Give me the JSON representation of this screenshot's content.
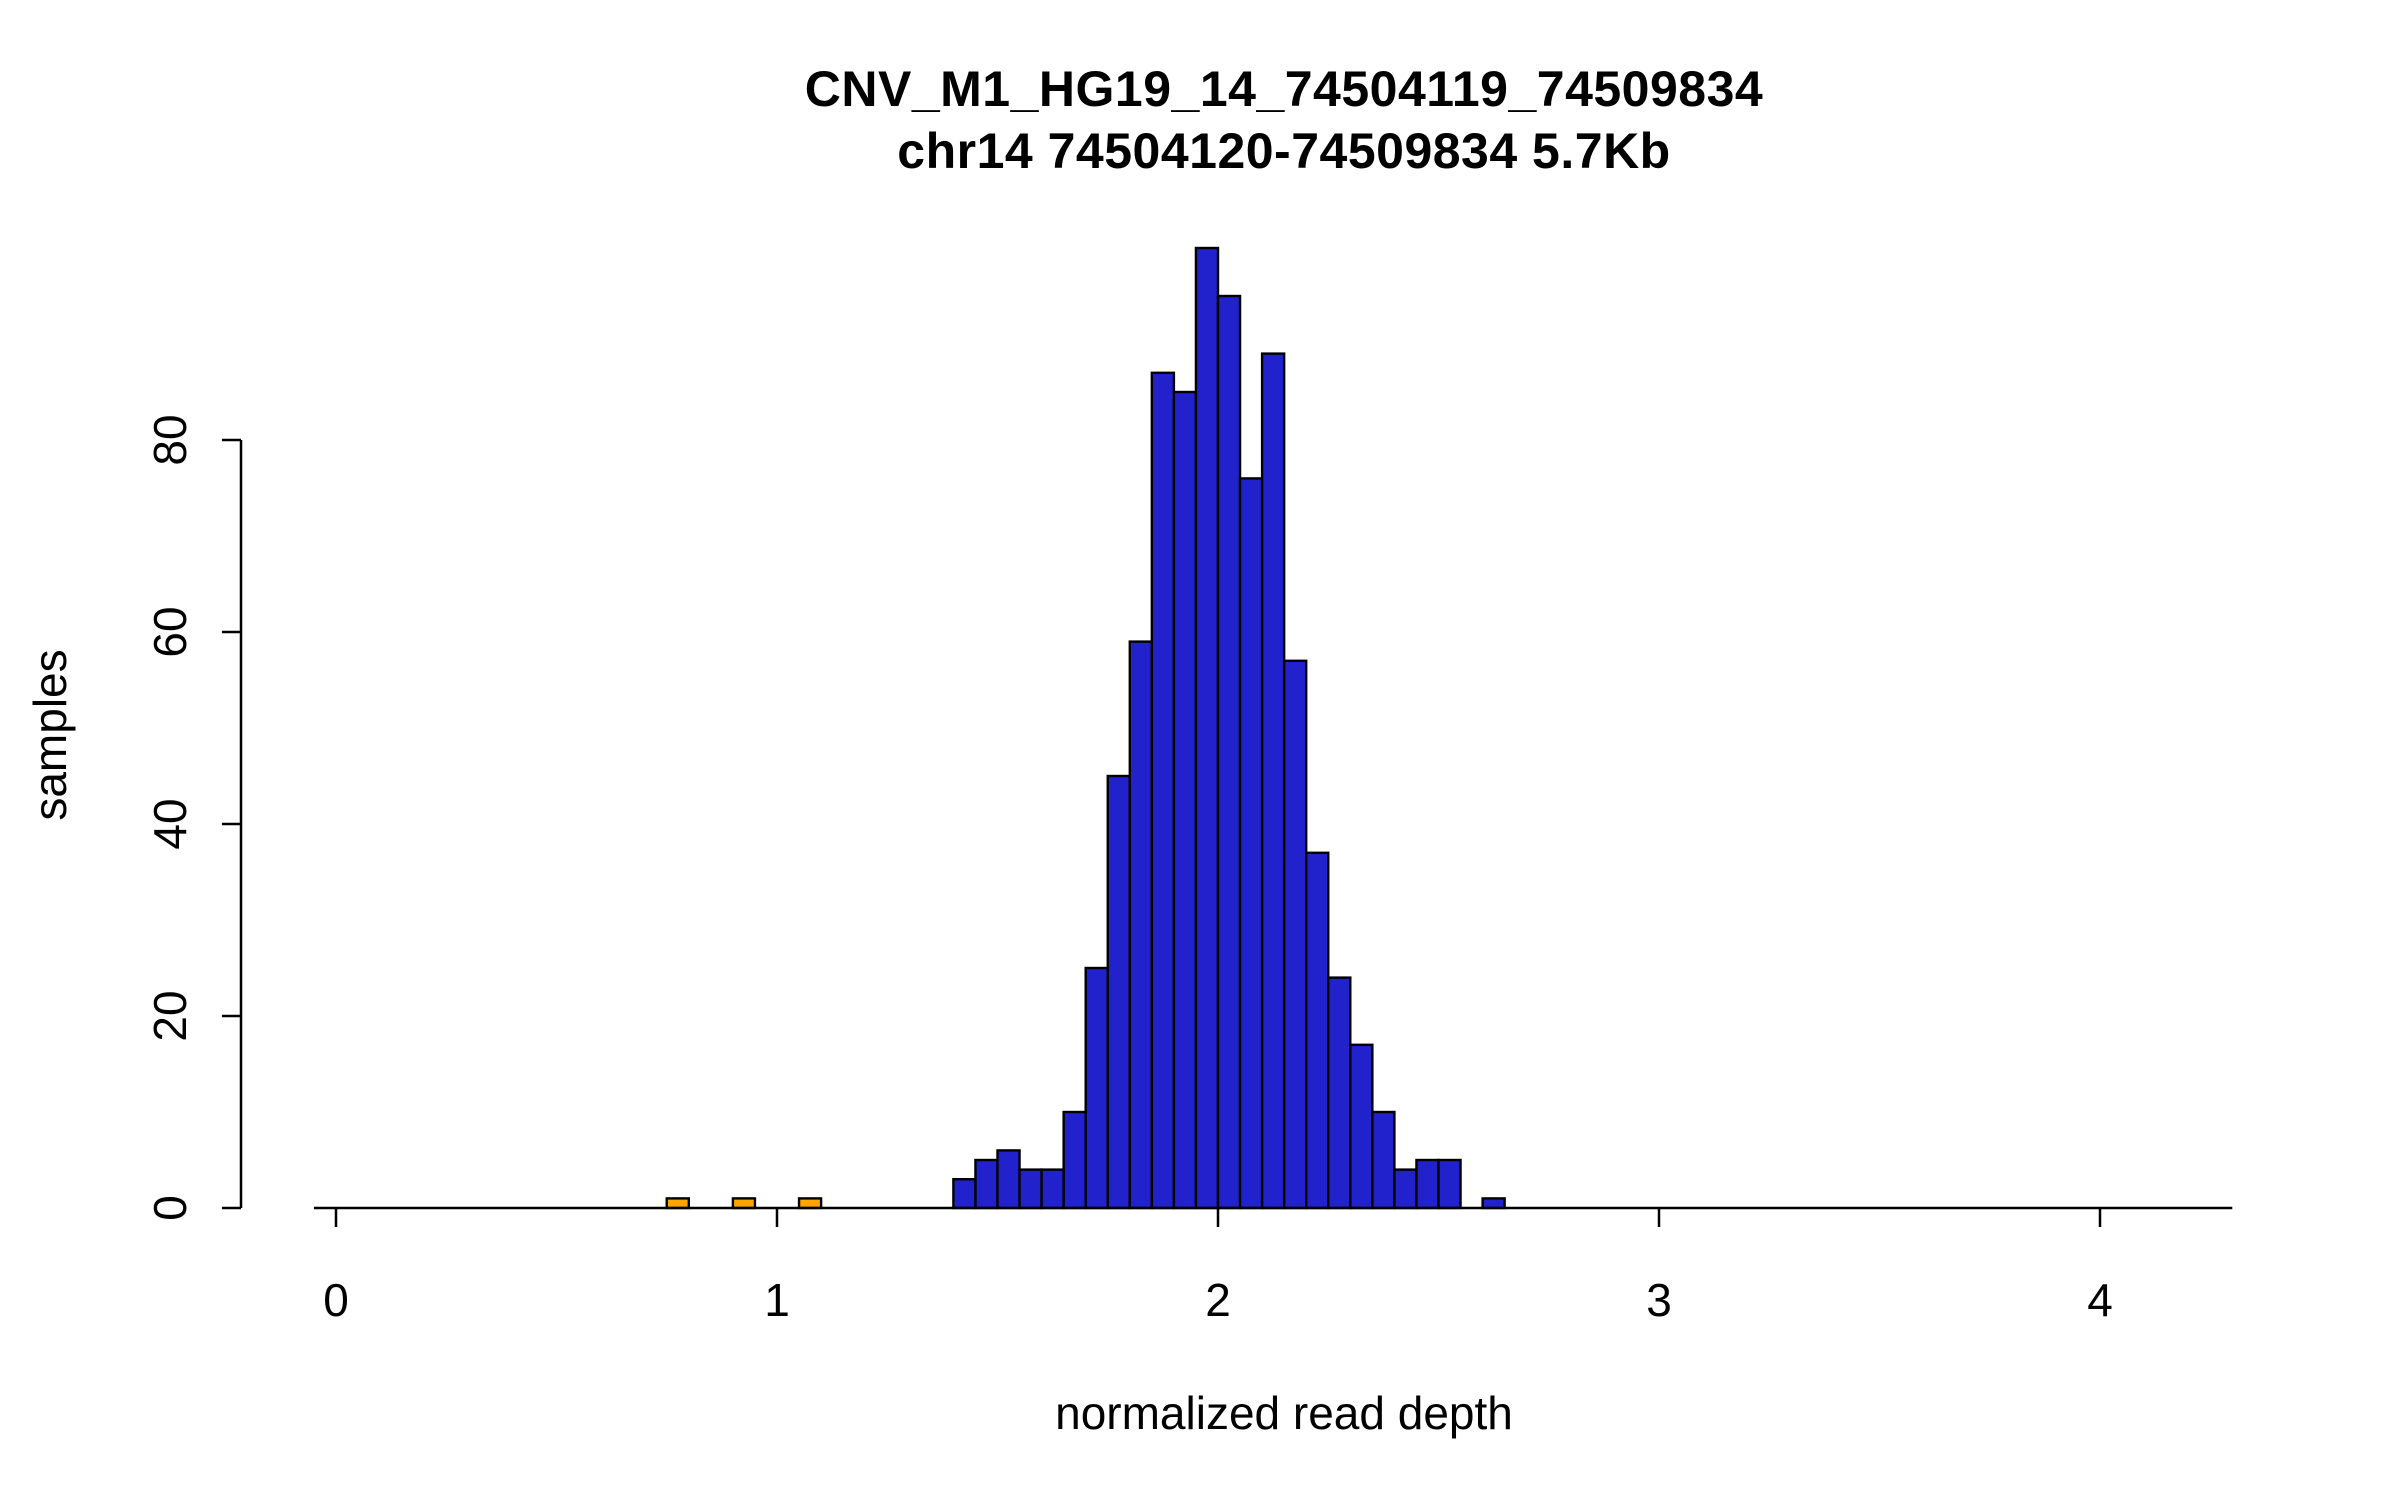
{
  "chart_data": {
    "type": "bar",
    "title": "CNV_M1_HG19_14_74504119_74509834",
    "subtitle": "chr14 74504120-74509834 5.7Kb",
    "xlabel": "normalized read depth",
    "ylabel": "samples",
    "xlim": [
      -0.05,
      4.3
    ],
    "ylim": [
      0,
      100
    ],
    "x_ticks": [
      0,
      1,
      2,
      3,
      4
    ],
    "y_ticks": [
      0,
      20,
      40,
      60,
      80
    ],
    "grid": false,
    "legend": "none",
    "bin_width": 0.05,
    "bar_color": "#2222CC",
    "outlier_color": "#FFA500",
    "bar_stroke": "#000000",
    "bins": [
      {
        "x0": 0.75,
        "count": 1,
        "series": "outlier"
      },
      {
        "x0": 0.9,
        "count": 1,
        "series": "outlier"
      },
      {
        "x0": 1.05,
        "count": 1,
        "series": "outlier"
      },
      {
        "x0": 1.4,
        "count": 3,
        "series": "main"
      },
      {
        "x0": 1.45,
        "count": 5,
        "series": "main"
      },
      {
        "x0": 1.5,
        "count": 6,
        "series": "main"
      },
      {
        "x0": 1.55,
        "count": 4,
        "series": "main"
      },
      {
        "x0": 1.6,
        "count": 4,
        "series": "main"
      },
      {
        "x0": 1.65,
        "count": 10,
        "series": "main"
      },
      {
        "x0": 1.7,
        "count": 25,
        "series": "main"
      },
      {
        "x0": 1.75,
        "count": 45,
        "series": "main"
      },
      {
        "x0": 1.8,
        "count": 59,
        "series": "main"
      },
      {
        "x0": 1.85,
        "count": 87,
        "series": "main"
      },
      {
        "x0": 1.9,
        "count": 85,
        "series": "main"
      },
      {
        "x0": 1.95,
        "count": 100,
        "series": "main"
      },
      {
        "x0": 2.0,
        "count": 95,
        "series": "main"
      },
      {
        "x0": 2.05,
        "count": 76,
        "series": "main"
      },
      {
        "x0": 2.1,
        "count": 89,
        "series": "main"
      },
      {
        "x0": 2.15,
        "count": 57,
        "series": "main"
      },
      {
        "x0": 2.2,
        "count": 37,
        "series": "main"
      },
      {
        "x0": 2.25,
        "count": 24,
        "series": "main"
      },
      {
        "x0": 2.3,
        "count": 17,
        "series": "main"
      },
      {
        "x0": 2.35,
        "count": 10,
        "series": "main"
      },
      {
        "x0": 2.4,
        "count": 4,
        "series": "main"
      },
      {
        "x0": 2.45,
        "count": 5,
        "series": "main"
      },
      {
        "x0": 2.5,
        "count": 5,
        "series": "main"
      },
      {
        "x0": 2.6,
        "count": 1,
        "series": "main"
      }
    ]
  }
}
